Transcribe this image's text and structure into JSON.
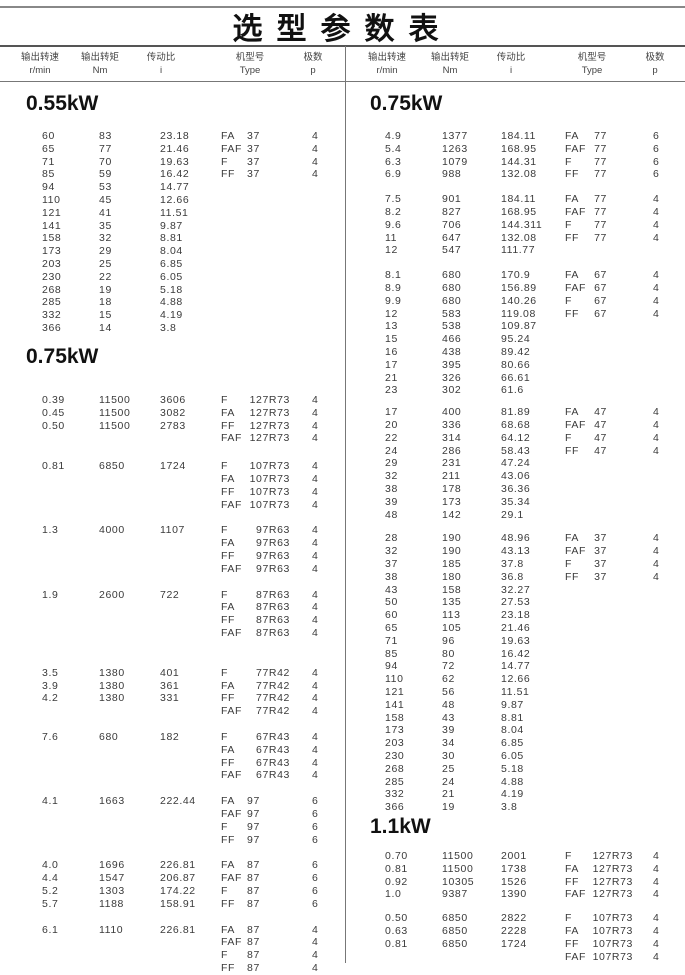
{
  "title": "选型参数表",
  "headers": [
    {
      "cn": "输出转速",
      "en": "r/min"
    },
    {
      "cn": "输出转矩",
      "en": "Nm"
    },
    {
      "cn": "传动比",
      "en": "i"
    },
    {
      "cn": "机型号",
      "en": "Type"
    },
    {
      "cn": "极数",
      "en": "p"
    }
  ],
  "headers_right_speed_unit": "r/min",
  "left": [
    {
      "title": "0.55kW",
      "groups": [
        {
          "rows": [
            [
              "60",
              "83",
              "23.18"
            ],
            [
              "65",
              "77",
              "21.46"
            ],
            [
              "71",
              "70",
              "19.63"
            ],
            [
              "85",
              "59",
              "16.42"
            ],
            [
              "94",
              "53",
              "14.77"
            ],
            [
              "110",
              "45",
              "12.66"
            ],
            [
              "121",
              "41",
              "11.51"
            ],
            [
              "141",
              "35",
              "9.87"
            ],
            [
              "158",
              "32",
              "8.81"
            ],
            [
              "173",
              "29",
              "8.04"
            ],
            [
              "203",
              "25",
              "6.85"
            ],
            [
              "230",
              "22",
              "6.05"
            ],
            [
              "268",
              "19",
              "5.18"
            ],
            [
              "285",
              "18",
              "4.88"
            ],
            [
              "332",
              "15",
              "4.19"
            ],
            [
              "366",
              "14",
              "3.8"
            ]
          ],
          "types": [
            [
              "FA",
              "37",
              "4"
            ],
            [
              "FAF",
              "37",
              "4"
            ],
            [
              "F",
              "37",
              "4"
            ],
            [
              "FF",
              "37",
              "4"
            ]
          ]
        }
      ]
    },
    {
      "title": "0.75kW",
      "groups": [
        {
          "rows": [
            [
              "0.39",
              "11500",
              "3606"
            ],
            [
              "0.45",
              "11500",
              "3082"
            ],
            [
              "0.50",
              "11500",
              "2783"
            ]
          ],
          "types": [
            [
              "F",
              "127R73",
              "4"
            ],
            [
              "FA",
              "127R73",
              "4"
            ],
            [
              "FF",
              "127R73",
              "4"
            ],
            [
              "FAF",
              "127R73",
              "4"
            ]
          ]
        },
        {
          "rows": [
            [
              "0.81",
              "6850",
              "1724"
            ]
          ],
          "types": [
            [
              "F",
              "107R73",
              "4"
            ],
            [
              "FA",
              "107R73",
              "4"
            ],
            [
              "FF",
              "107R73",
              "4"
            ],
            [
              "FAF",
              "107R73",
              "4"
            ]
          ]
        },
        {
          "rows": [
            [
              "1.3",
              "4000",
              "1107"
            ]
          ],
          "types": [
            [
              "F",
              "97R63",
              "4"
            ],
            [
              "FA",
              "97R63",
              "4"
            ],
            [
              "FF",
              "97R63",
              "4"
            ],
            [
              "FAF",
              "97R63",
              "4"
            ]
          ]
        },
        {
          "rows": [
            [
              "1.9",
              "2600",
              "722"
            ]
          ],
          "types": [
            [
              "F",
              "87R63",
              "4"
            ],
            [
              "FA",
              "87R63",
              "4"
            ],
            [
              "FF",
              "87R63",
              "4"
            ],
            [
              "FAF",
              "87R63",
              "4"
            ]
          ]
        },
        {
          "rows": [
            [
              "3.5",
              "1380",
              "401"
            ],
            [
              "3.9",
              "1380",
              "361"
            ],
            [
              "4.2",
              "1380",
              "331"
            ]
          ],
          "types": [
            [
              "F",
              "77R42",
              "4"
            ],
            [
              "FA",
              "77R42",
              "4"
            ],
            [
              "FF",
              "77R42",
              "4"
            ],
            [
              "FAF",
              "77R42",
              "4"
            ]
          ]
        },
        {
          "rows": [
            [
              "7.6",
              "680",
              "182"
            ]
          ],
          "types": [
            [
              "F",
              "67R43",
              "4"
            ],
            [
              "FA",
              "67R43",
              "4"
            ],
            [
              "FF",
              "67R43",
              "4"
            ],
            [
              "FAF",
              "67R43",
              "4"
            ]
          ]
        },
        {
          "rows": [
            [
              "4.1",
              "1663",
              "222.44"
            ]
          ],
          "types": [
            [
              "FA",
              "97",
              "6"
            ],
            [
              "FAF",
              "97",
              "6"
            ],
            [
              "F",
              "97",
              "6"
            ],
            [
              "FF",
              "97",
              "6"
            ]
          ]
        },
        {
          "rows": [
            [
              "4.0",
              "1696",
              "226.81"
            ],
            [
              "4.4",
              "1547",
              "206.87"
            ],
            [
              "5.2",
              "1303",
              "174.22"
            ],
            [
              "5.7",
              "1188",
              "158.91"
            ]
          ],
          "types": [
            [
              "FA",
              "87",
              "6"
            ],
            [
              "FAF",
              "87",
              "6"
            ],
            [
              "F",
              "87",
              "6"
            ],
            [
              "FF",
              "87",
              "6"
            ]
          ]
        },
        {
          "rows": [
            [
              "6.1",
              "1110",
              "226.81"
            ]
          ],
          "types": [
            [
              "FA",
              "87",
              "4"
            ],
            [
              "FAF",
              "87",
              "4"
            ],
            [
              "F",
              "87",
              "4"
            ],
            [
              "FF",
              "87",
              "4"
            ]
          ]
        }
      ]
    }
  ],
  "right": [
    {
      "title": "0.75kW",
      "groups": [
        {
          "rows": [
            [
              "4.9",
              "1377",
              "184.11"
            ],
            [
              "5.4",
              "1263",
              "168.95"
            ],
            [
              "6.3",
              "1079",
              "144.31"
            ],
            [
              "6.9",
              "988",
              "132.08"
            ]
          ],
          "types": [
            [
              "FA",
              "77",
              "6"
            ],
            [
              "FAF",
              "77",
              "6"
            ],
            [
              "F",
              "77",
              "6"
            ],
            [
              "FF",
              "77",
              "6"
            ]
          ]
        },
        {
          "rows": [
            [
              "7.5",
              "901",
              "184.11"
            ],
            [
              "8.2",
              "827",
              "168.95"
            ],
            [
              "9.6",
              "706",
              "144.311"
            ],
            [
              "11",
              "647",
              "132.08"
            ],
            [
              "12",
              "547",
              "111.77"
            ]
          ],
          "types": [
            [
              "FA",
              "77",
              "4"
            ],
            [
              "FAF",
              "77",
              "4"
            ],
            [
              "F",
              "77",
              "4"
            ],
            [
              "FF",
              "77",
              "4"
            ]
          ]
        },
        {
          "rows": [
            [
              "8.1",
              "680",
              "170.9"
            ],
            [
              "8.9",
              "680",
              "156.89"
            ],
            [
              "9.9",
              "680",
              "140.26"
            ],
            [
              "12",
              "583",
              "119.08"
            ],
            [
              "13",
              "538",
              "109.87"
            ],
            [
              "15",
              "466",
              "95.24"
            ],
            [
              "16",
              "438",
              "89.42"
            ],
            [
              "17",
              "395",
              "80.66"
            ],
            [
              "21",
              "326",
              "66.61"
            ],
            [
              "23",
              "302",
              "61.6"
            ]
          ],
          "types": [
            [
              "FA",
              "67",
              "4"
            ],
            [
              "FAF",
              "67",
              "4"
            ],
            [
              "F",
              "67",
              "4"
            ],
            [
              "FF",
              "67",
              "4"
            ]
          ]
        },
        {
          "rows": [
            [
              "17",
              "400",
              "81.89"
            ],
            [
              "20",
              "336",
              "68.68"
            ],
            [
              "22",
              "314",
              "64.12"
            ],
            [
              "24",
              "286",
              "58.43"
            ],
            [
              "29",
              "231",
              "47.24"
            ],
            [
              "32",
              "211",
              "43.06"
            ],
            [
              "38",
              "178",
              "36.36"
            ],
            [
              "39",
              "173",
              "35.34"
            ],
            [
              "48",
              "142",
              "29.1"
            ]
          ],
          "types": [
            [
              "FA",
              "47",
              "4"
            ],
            [
              "FAF",
              "47",
              "4"
            ],
            [
              "F",
              "47",
              "4"
            ],
            [
              "FF",
              "47",
              "4"
            ]
          ]
        },
        {
          "rows": [
            [
              "28",
              "190",
              "48.96"
            ],
            [
              "32",
              "190",
              "43.13"
            ],
            [
              "37",
              "185",
              "37.8"
            ],
            [
              "38",
              "180",
              "36.8"
            ],
            [
              "43",
              "158",
              "32.27"
            ],
            [
              "50",
              "135",
              "27.53"
            ],
            [
              "60",
              "113",
              "23.18"
            ],
            [
              "65",
              "105",
              "21.46"
            ],
            [
              "71",
              "96",
              "19.63"
            ],
            [
              "85",
              "80",
              "16.42"
            ],
            [
              "94",
              "72",
              "14.77"
            ],
            [
              "110",
              "62",
              "12.66"
            ],
            [
              "121",
              "56",
              "11.51"
            ],
            [
              "141",
              "48",
              "9.87"
            ],
            [
              "158",
              "43",
              "8.81"
            ],
            [
              "173",
              "39",
              "8.04"
            ],
            [
              "203",
              "34",
              "6.85"
            ],
            [
              "230",
              "30",
              "6.05"
            ],
            [
              "268",
              "25",
              "5.18"
            ],
            [
              "285",
              "24",
              "4.88"
            ],
            [
              "332",
              "21",
              "4.19"
            ],
            [
              "366",
              "19",
              "3.8"
            ]
          ],
          "types": [
            [
              "FA",
              "37",
              "4"
            ],
            [
              "FAF",
              "37",
              "4"
            ],
            [
              "F",
              "37",
              "4"
            ],
            [
              "FF",
              "37",
              "4"
            ]
          ]
        }
      ]
    },
    {
      "title": "1.1kW",
      "groups": [
        {
          "rows": [
            [
              "0.70",
              "11500",
              "2001"
            ],
            [
              "0.81",
              "11500",
              "1738"
            ],
            [
              "0.92",
              "10305",
              "1526"
            ],
            [
              "1.0",
              "9387",
              "1390"
            ]
          ],
          "types": [
            [
              "F",
              "127R73",
              "4"
            ],
            [
              "FA",
              "127R73",
              "4"
            ],
            [
              "FF",
              "127R73",
              "4"
            ],
            [
              "FAF",
              "127R73",
              "4"
            ]
          ]
        },
        {
          "rows": [
            [
              "0.50",
              "6850",
              "2822"
            ],
            [
              "0.63",
              "6850",
              "2228"
            ],
            [
              "0.81",
              "6850",
              "1724"
            ]
          ],
          "types": [
            [
              "F",
              "107R73",
              "4"
            ],
            [
              "FA",
              "107R73",
              "4"
            ],
            [
              "FF",
              "107R73",
              "4"
            ],
            [
              "FAF",
              "107R73",
              "4"
            ]
          ]
        }
      ]
    }
  ]
}
